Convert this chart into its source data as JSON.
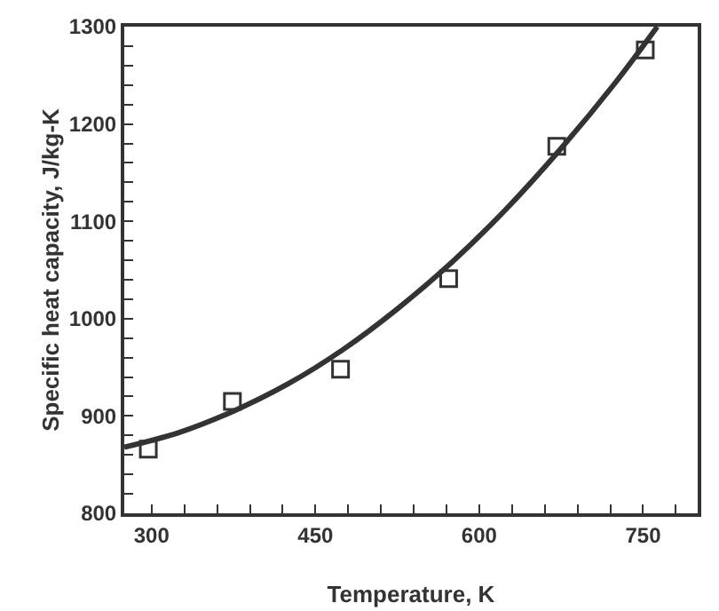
{
  "chart_data": {
    "type": "scatter",
    "xlabel": "Temperature, K",
    "ylabel": "Specific heat capacity, J/kg-K",
    "xlim": [
      275,
      800
    ],
    "ylim": [
      800,
      1300
    ],
    "xticks": [
      300,
      {
        "value": 330,
        "label": null
      },
      {
        "value": 360,
        "label": null
      },
      {
        "value": 390,
        "label": null
      },
      {
        "value": 420,
        "label": null
      },
      450,
      {
        "value": 480,
        "label": null
      },
      {
        "value": 510,
        "label": null
      },
      {
        "value": 540,
        "label": null
      },
      {
        "value": 570,
        "label": null
      },
      600,
      {
        "value": 630,
        "label": null
      },
      {
        "value": 660,
        "label": null
      },
      {
        "value": 690,
        "label": null
      },
      {
        "value": 720,
        "label": null
      },
      750,
      {
        "value": 780,
        "label": null
      }
    ],
    "yticks": [
      800,
      {
        "value": 820,
        "label": null
      },
      {
        "value": 840,
        "label": null
      },
      {
        "value": 860,
        "label": null
      },
      {
        "value": 880,
        "label": null
      },
      900,
      {
        "value": 920,
        "label": null
      },
      {
        "value": 940,
        "label": null
      },
      {
        "value": 960,
        "label": null
      },
      {
        "value": 980,
        "label": null
      },
      1000,
      {
        "value": 1020,
        "label": null
      },
      {
        "value": 1040,
        "label": null
      },
      {
        "value": 1060,
        "label": null
      },
      {
        "value": 1080,
        "label": null
      },
      1100,
      {
        "value": 1120,
        "label": null
      },
      {
        "value": 1140,
        "label": null
      },
      {
        "value": 1160,
        "label": null
      },
      {
        "value": 1180,
        "label": null
      },
      1200,
      {
        "value": 1220,
        "label": null
      },
      {
        "value": 1240,
        "label": null
      },
      {
        "value": 1260,
        "label": null
      },
      {
        "value": 1280,
        "label": null
      },
      1300
    ],
    "grid": false,
    "series": [
      {
        "marker": "square",
        "color": "#333333",
        "x": [
          297,
          374,
          473,
          572,
          671,
          752
        ],
        "values": [
          866,
          915,
          948,
          1041,
          1177,
          1276
        ]
      },
      {
        "type": "line",
        "marker": "none",
        "line_style": "solid",
        "color": "#333333",
        "x": [
          275,
          325,
          375,
          425,
          475,
          525,
          575,
          625,
          675,
          725,
          763
        ],
        "values": [
          868,
          883,
          905,
          933,
          968,
          1010,
          1058,
          1113,
          1175,
          1243,
          1300
        ]
      }
    ]
  }
}
